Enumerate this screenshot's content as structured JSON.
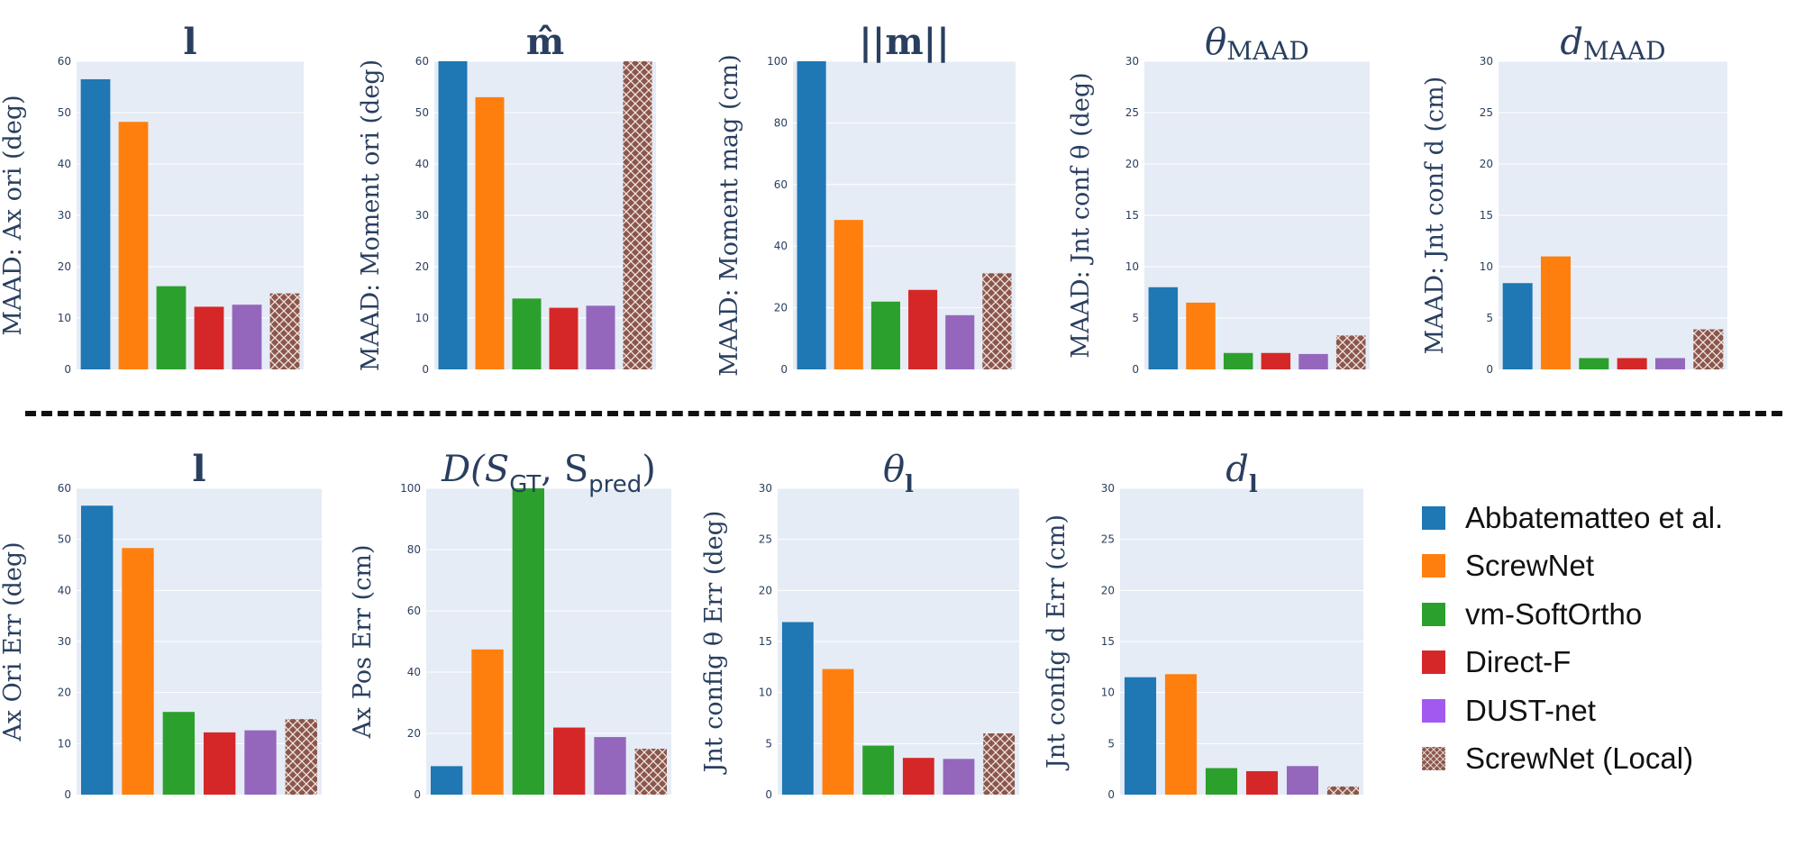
{
  "series": [
    {
      "name": "Abbatematteo et al.",
      "color": "#1f77b4"
    },
    {
      "name": "ScrewNet",
      "color": "#ff7f0e"
    },
    {
      "name": "vm-SoftOrtho",
      "color": "#2ca02c"
    },
    {
      "name": "Direct-F",
      "color": "#d62728"
    },
    {
      "name": "DUST-net",
      "color": "#9467bd",
      "swatch_color": "#a259f0"
    },
    {
      "name": "ScrewNet (Local)",
      "color": "#8c564b",
      "pattern": "crosshatch"
    }
  ],
  "chart_data": [
    {
      "type": "bar",
      "title": "l",
      "ylabel": "MAAD: Ax ori (deg)",
      "ylim": [
        0,
        60
      ],
      "yticks": [
        0,
        10,
        20,
        30,
        40,
        50,
        60
      ],
      "values": [
        56.5,
        48.2,
        16.2,
        12.2,
        12.6,
        14.8
      ]
    },
    {
      "type": "bar",
      "title": "m̂",
      "ylabel": "MAAD: Moment ori (deg)",
      "ylim": [
        0,
        60
      ],
      "yticks": [
        0,
        10,
        20,
        30,
        40,
        50,
        60
      ],
      "values": [
        60,
        53.0,
        13.8,
        12.0,
        12.4,
        60
      ]
    },
    {
      "type": "bar",
      "title": "||m||",
      "ylabel": "MAAD: Moment mag (cm)",
      "ylim": [
        0,
        100
      ],
      "yticks": [
        0,
        20,
        40,
        60,
        80,
        100
      ],
      "values": [
        100,
        48.5,
        22.0,
        25.8,
        17.6,
        31.2
      ]
    },
    {
      "type": "bar",
      "title": "θ",
      "title_sub": "MAAD",
      "ylabel": "MAAD: Jnt conf θ (deg)",
      "ylim": [
        0,
        30
      ],
      "yticks": [
        0,
        5,
        10,
        15,
        20,
        25,
        30
      ],
      "values": [
        8.0,
        6.5,
        1.6,
        1.6,
        1.5,
        3.3
      ]
    },
    {
      "type": "bar",
      "title": "d",
      "title_sub": "MAAD",
      "ylabel": "MAAD: Jnt conf d (cm)",
      "ylim": [
        0,
        30
      ],
      "yticks": [
        0,
        5,
        10,
        15,
        20,
        25,
        30
      ],
      "values": [
        8.4,
        11.0,
        1.1,
        1.1,
        1.1,
        3.9
      ]
    },
    {
      "type": "bar",
      "title": "l",
      "ylabel": "Ax Ori Err (deg)",
      "ylim": [
        0,
        60
      ],
      "yticks": [
        0,
        10,
        20,
        30,
        40,
        50,
        60
      ],
      "values": [
        56.6,
        48.3,
        16.2,
        12.2,
        12.6,
        14.8
      ]
    },
    {
      "type": "bar",
      "title": "D(S",
      "title_sub": "GT",
      "title_mid": ", S",
      "title_sub2": "pred",
      "title_end": ")",
      "ylabel": "Ax Pos Err (cm)",
      "ylim": [
        0,
        100
      ],
      "yticks": [
        0,
        20,
        40,
        60,
        80,
        100
      ],
      "values": [
        9.3,
        47.4,
        100,
        21.9,
        18.8,
        15.0
      ]
    },
    {
      "type": "bar",
      "title": "θ",
      "title_sub": "l",
      "ylabel": "Jnt config θ Err (deg)",
      "ylim": [
        0,
        30
      ],
      "yticks": [
        0,
        5,
        10,
        15,
        20,
        25,
        30
      ],
      "values": [
        16.9,
        12.3,
        4.8,
        3.6,
        3.5,
        6.0
      ]
    },
    {
      "type": "bar",
      "title": "d",
      "title_sub": "l",
      "ylabel": "Jnt config d Err (cm)",
      "ylim": [
        0,
        30
      ],
      "yticks": [
        0,
        5,
        10,
        15,
        20,
        25,
        30
      ],
      "values": [
        11.5,
        11.8,
        2.6,
        2.3,
        2.8,
        0.8
      ]
    }
  ]
}
